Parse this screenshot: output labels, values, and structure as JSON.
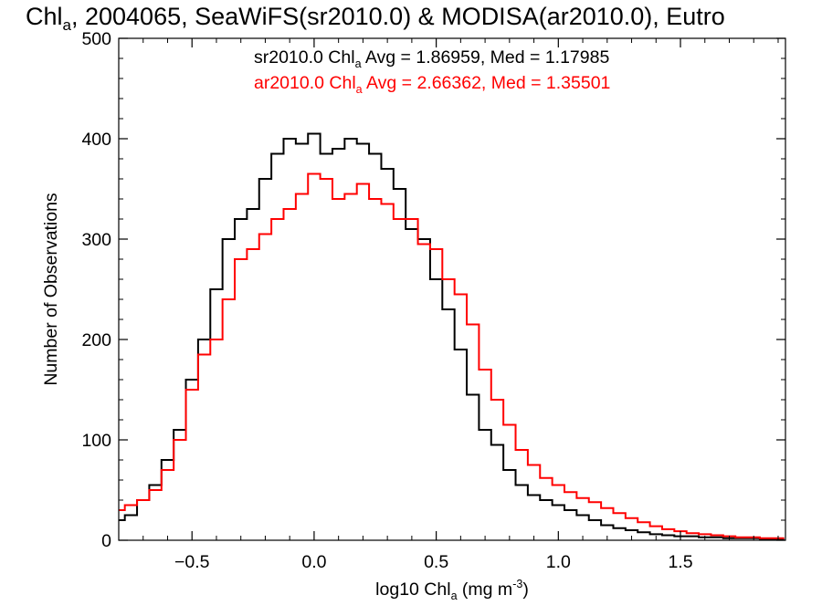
{
  "chart_data": {
    "type": "line",
    "title": {
      "pre": "Chl",
      "sub": "a",
      "post": ", 2004065, SeaWiFS(sr2010.0) & MODISA(ar2010.0), Eutro"
    },
    "xlabel": {
      "pre": "log10 Chl",
      "sub": "a",
      "mid": " (mg m",
      "sup": "-3",
      "post": ")"
    },
    "ylabel": "Number of Observations",
    "xlim": [
      -0.8,
      1.93
    ],
    "ylim": [
      0,
      500
    ],
    "x_ticks": [
      {
        "value": -0.5,
        "label": "−0.5"
      },
      {
        "value": 0.0,
        "label": "0.0"
      },
      {
        "value": 0.5,
        "label": "0.5"
      },
      {
        "value": 1.0,
        "label": "1.0"
      },
      {
        "value": 1.5,
        "label": "1.5"
      }
    ],
    "y_ticks": [
      {
        "value": 0,
        "label": "0"
      },
      {
        "value": 100,
        "label": "100"
      },
      {
        "value": 200,
        "label": "200"
      },
      {
        "value": 300,
        "label": "300"
      },
      {
        "value": 400,
        "label": "400"
      },
      {
        "value": 500,
        "label": "500"
      }
    ],
    "annotations": [
      {
        "pre": "sr2010.0 Chl",
        "sub": "a",
        "post": " Avg = 1.86959, Med = 1.17985",
        "color": "#000000"
      },
      {
        "pre": "ar2010.0 Chl",
        "sub": "a",
        "post": " Avg = 2.66362, Med = 1.35501",
        "color": "#ff0000"
      }
    ],
    "series": [
      {
        "color": "#000000",
        "x": [
          -0.8,
          -0.75,
          -0.7,
          -0.65,
          -0.6,
          -0.55,
          -0.5,
          -0.45,
          -0.4,
          -0.35,
          -0.3,
          -0.25,
          -0.2,
          -0.15,
          -0.1,
          -0.05,
          0.0,
          0.05,
          0.1,
          0.15,
          0.2,
          0.25,
          0.3,
          0.35,
          0.4,
          0.45,
          0.5,
          0.55,
          0.6,
          0.65,
          0.7,
          0.75,
          0.8,
          0.85,
          0.9,
          0.95,
          1.0,
          1.05,
          1.1,
          1.15,
          1.2,
          1.25,
          1.3,
          1.35,
          1.4,
          1.45,
          1.5,
          1.55,
          1.6,
          1.65,
          1.7,
          1.75,
          1.8,
          1.85,
          1.9
        ],
        "y": [
          20,
          25,
          40,
          55,
          80,
          110,
          160,
          200,
          250,
          300,
          320,
          330,
          360,
          385,
          400,
          395,
          405,
          385,
          390,
          400,
          395,
          385,
          370,
          350,
          310,
          300,
          260,
          230,
          190,
          145,
          110,
          95,
          70,
          55,
          45,
          40,
          35,
          30,
          25,
          20,
          15,
          12,
          10,
          8,
          6,
          5,
          4,
          4,
          3,
          3,
          2,
          2,
          2,
          1,
          1
        ]
      },
      {
        "color": "#ff0000",
        "x": [
          -0.8,
          -0.75,
          -0.7,
          -0.65,
          -0.6,
          -0.55,
          -0.5,
          -0.45,
          -0.4,
          -0.35,
          -0.3,
          -0.25,
          -0.2,
          -0.15,
          -0.1,
          -0.05,
          0.0,
          0.05,
          0.1,
          0.15,
          0.2,
          0.25,
          0.3,
          0.35,
          0.4,
          0.45,
          0.5,
          0.55,
          0.6,
          0.65,
          0.7,
          0.75,
          0.8,
          0.85,
          0.9,
          0.95,
          1.0,
          1.05,
          1.1,
          1.15,
          1.2,
          1.25,
          1.3,
          1.35,
          1.4,
          1.45,
          1.5,
          1.55,
          1.6,
          1.65,
          1.7,
          1.75,
          1.8,
          1.85,
          1.9
        ],
        "y": [
          30,
          35,
          40,
          50,
          70,
          100,
          150,
          185,
          200,
          240,
          280,
          290,
          305,
          320,
          330,
          345,
          365,
          360,
          340,
          345,
          355,
          340,
          335,
          320,
          320,
          295,
          290,
          260,
          245,
          215,
          170,
          140,
          115,
          90,
          75,
          62,
          55,
          48,
          42,
          38,
          32,
          27,
          22,
          18,
          14,
          11,
          9,
          7,
          6,
          5,
          4,
          3,
          3,
          2,
          2
        ]
      }
    ]
  }
}
